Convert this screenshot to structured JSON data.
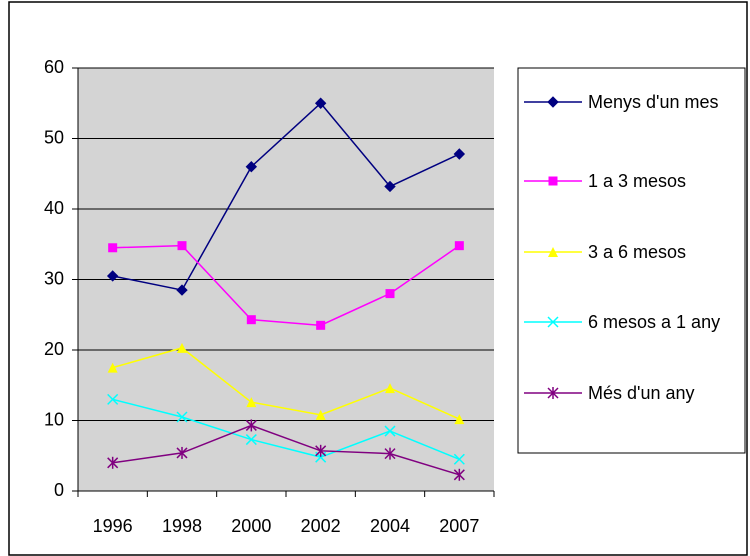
{
  "chart_data": {
    "type": "line",
    "categories": [
      "1996",
      "1998",
      "2000",
      "2002",
      "2004",
      "2007"
    ],
    "series": [
      {
        "name": "Menys d'un mes",
        "color": "#000080",
        "marker": "diamond",
        "values": [
          30.5,
          28.5,
          46,
          55,
          43.2,
          47.8
        ]
      },
      {
        "name": "1 a 3 mesos",
        "color": "#ff00ff",
        "marker": "square",
        "values": [
          34.5,
          34.8,
          24.3,
          23.5,
          28,
          34.8
        ]
      },
      {
        "name": "3 a 6 mesos",
        "color": "#ffff00",
        "marker": "triangle",
        "values": [
          17.5,
          20.3,
          12.6,
          10.8,
          14.6,
          10.2
        ]
      },
      {
        "name": "6 mesos a 1 any",
        "color": "#00ffff",
        "marker": "x",
        "values": [
          13,
          10.5,
          7.3,
          4.8,
          8.5,
          4.5
        ]
      },
      {
        "name": "Més d'un any",
        "color": "#800080",
        "marker": "asterisk",
        "values": [
          4,
          5.4,
          9.3,
          5.7,
          5.3,
          2.3
        ]
      }
    ],
    "ylim": [
      0,
      60
    ],
    "yticks": [
      0,
      10,
      20,
      30,
      40,
      50,
      60
    ],
    "grid": true,
    "legend": "right"
  }
}
